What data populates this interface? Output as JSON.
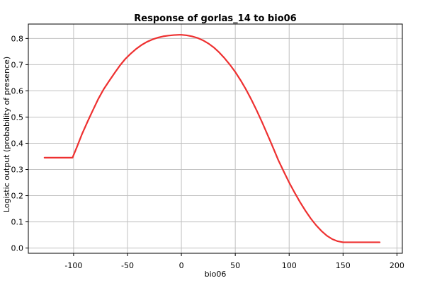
{
  "chart_data": {
    "type": "line",
    "title": "Response of gorlas_14 to bio06",
    "xlabel": "bio06",
    "ylabel": "Logistic output (probability of presence)",
    "xlim": [
      -142,
      205
    ],
    "ylim": [
      -0.02,
      0.855
    ],
    "x_ticks": [
      -100,
      -50,
      0,
      50,
      100,
      150,
      200
    ],
    "x_tick_labels": [
      "-100",
      "-50",
      "0",
      "50",
      "100",
      "150",
      "200"
    ],
    "y_ticks": [
      0.0,
      0.1,
      0.2,
      0.3,
      0.4,
      0.5,
      0.6,
      0.7,
      0.8
    ],
    "y_tick_labels": [
      "0.0",
      "0.1",
      "0.2",
      "0.3",
      "0.4",
      "0.5",
      "0.6",
      "0.7",
      "0.8"
    ],
    "grid": true,
    "series_color": "#ee3030",
    "grid_color": "#c0c0c0",
    "series": [
      {
        "x": [
          -127,
          -117,
          -107,
          -101,
          -97,
          -92,
          -87,
          -82,
          -77,
          -72,
          -67,
          -62,
          -57,
          -52,
          -47,
          -42,
          -37,
          -32,
          -27,
          -22,
          -17,
          -12,
          -7,
          -2,
          0,
          5,
          10,
          15,
          20,
          25,
          30,
          35,
          40,
          45,
          50,
          55,
          60,
          65,
          70,
          75,
          80,
          85,
          90,
          95,
          100,
          105,
          110,
          115,
          120,
          125,
          130,
          135,
          140,
          145,
          150,
          155,
          160,
          170,
          184
        ],
        "y": [
          0.345,
          0.345,
          0.345,
          0.345,
          0.385,
          0.437,
          0.483,
          0.527,
          0.57,
          0.607,
          0.638,
          0.668,
          0.697,
          0.722,
          0.742,
          0.76,
          0.775,
          0.787,
          0.796,
          0.803,
          0.808,
          0.811,
          0.813,
          0.814,
          0.814,
          0.812,
          0.808,
          0.802,
          0.793,
          0.781,
          0.766,
          0.747,
          0.725,
          0.7,
          0.672,
          0.64,
          0.605,
          0.566,
          0.524,
          0.479,
          0.432,
          0.384,
          0.335,
          0.292,
          0.25,
          0.212,
          0.176,
          0.143,
          0.113,
          0.087,
          0.065,
          0.047,
          0.034,
          0.026,
          0.022,
          0.022,
          0.022,
          0.022,
          0.022
        ]
      }
    ]
  }
}
